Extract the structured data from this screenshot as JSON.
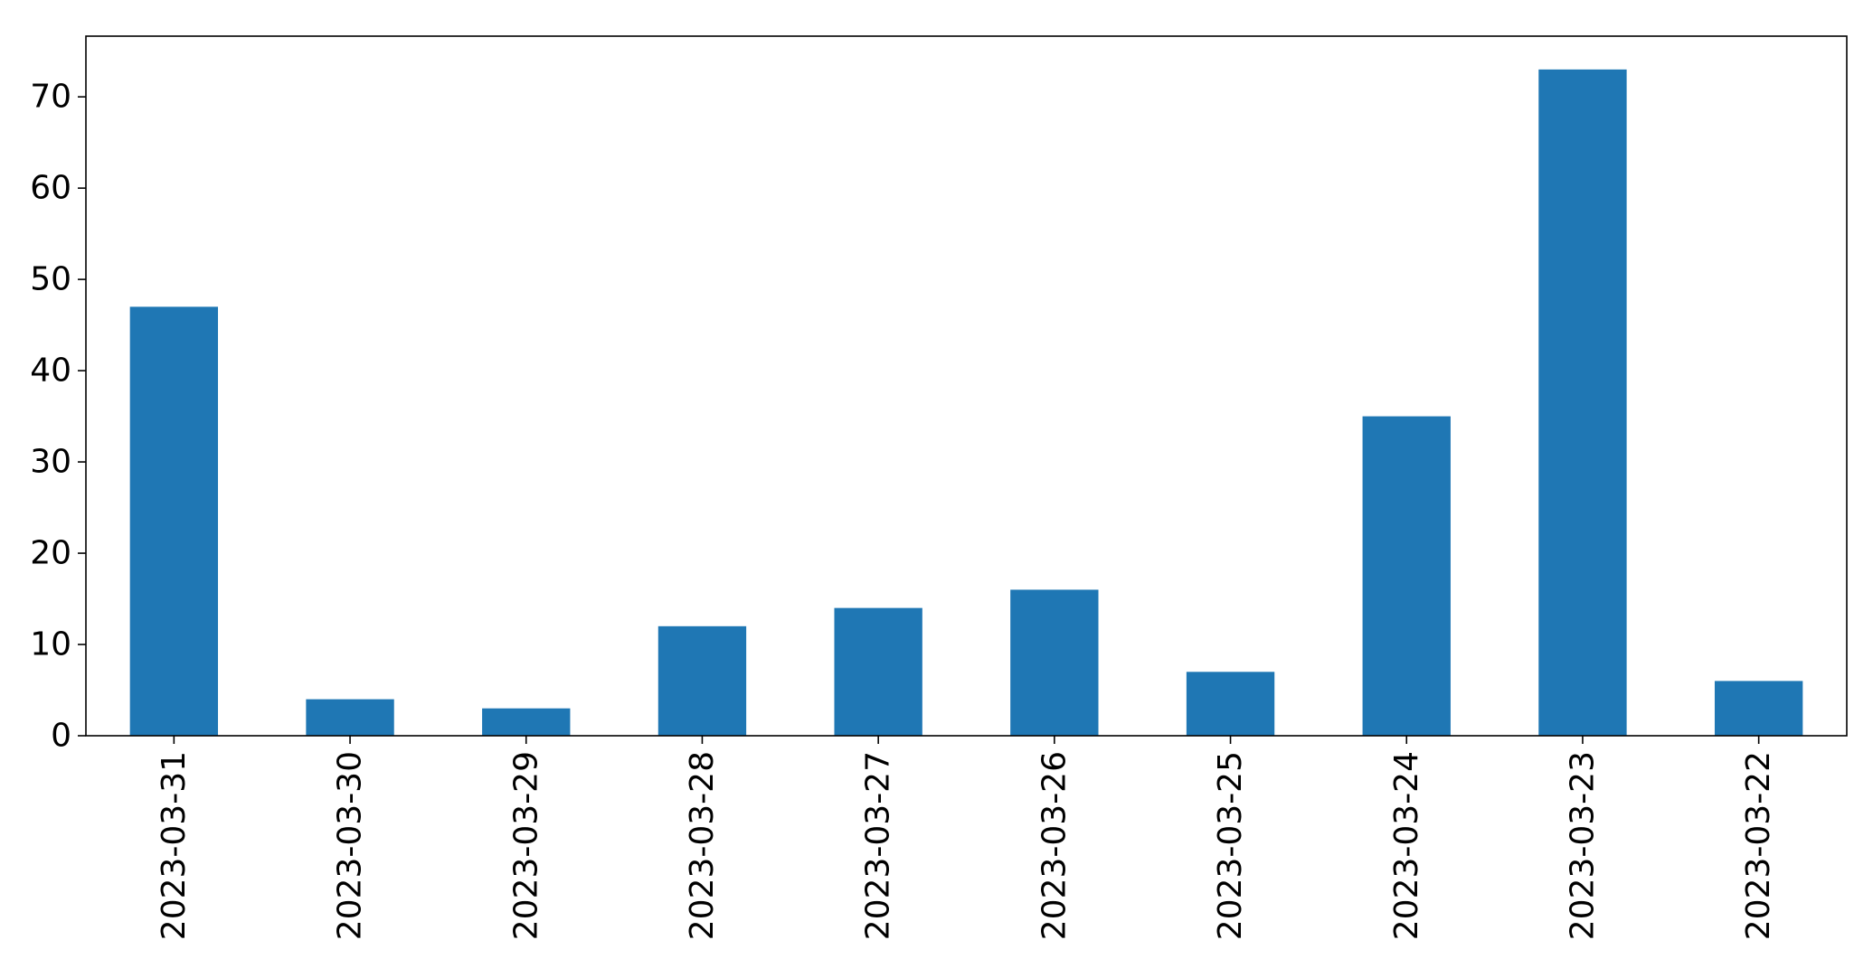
{
  "chart_data": {
    "type": "bar",
    "title": "",
    "xlabel": "",
    "ylabel": "",
    "categories": [
      "2023-03-31",
      "2023-03-30",
      "2023-03-29",
      "2023-03-28",
      "2023-03-27",
      "2023-03-26",
      "2023-03-25",
      "2023-03-24",
      "2023-03-23",
      "2023-03-22"
    ],
    "values": [
      47,
      4,
      3,
      12,
      14,
      16,
      7,
      35,
      73,
      6
    ],
    "ylim": [
      0,
      76.65
    ],
    "yticks": [
      0,
      10,
      20,
      30,
      40,
      50,
      60,
      70
    ],
    "grid": false,
    "legend": "none",
    "bar_color": "#1f77b4",
    "axis_color": "#000000",
    "xtick_rotation": "vertical"
  }
}
